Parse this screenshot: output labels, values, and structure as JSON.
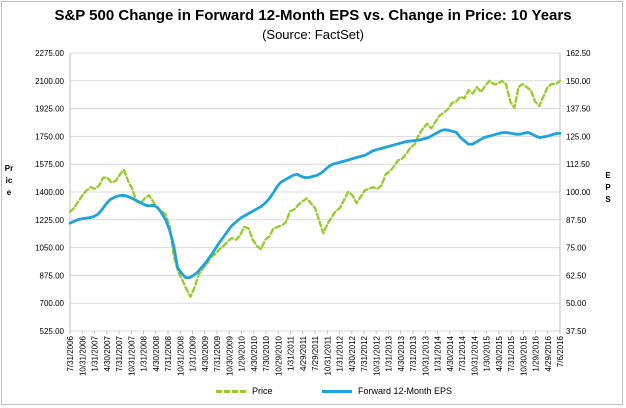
{
  "chart_data": {
    "type": "line",
    "title": "S&P 500 Change in Forward 12-Month EPS vs. Change in Price: 10 Years",
    "subtitle": "(Source: FactSet)",
    "ylabel_left": "Price",
    "ylabel_right": "EPS",
    "ylim_left": [
      525,
      2275
    ],
    "ylim_right": [
      37.5,
      162.5
    ],
    "yticks_left": [
      "2275.00",
      "2100.00",
      "1925.00",
      "1750.00",
      "1575.00",
      "1400.00",
      "1225.00",
      "1050.00",
      "875.00",
      "700.00",
      "525.00"
    ],
    "yticks_right": [
      "162.50",
      "150.00",
      "137.50",
      "125.00",
      "112.50",
      "100.00",
      "87.50",
      "75.00",
      "62.50",
      "50.00",
      "37.50"
    ],
    "x_tick_labels": [
      "7/31/2006",
      "10/31/2006",
      "1/31/2007",
      "4/30/2007",
      "7/31/2007",
      "10/31/2007",
      "1/31/2008",
      "4/30/2008",
      "7/31/2008",
      "10/31/2008",
      "1/31/2009",
      "4/30/2009",
      "7/31/2009",
      "10/30/2009",
      "1/29/2010",
      "4/30/2010",
      "7/30/2010",
      "10/29/2010",
      "1/31/2011",
      "4/29/2011",
      "7/29/2011",
      "10/31/2011",
      "1/31/2012",
      "4/30/2012",
      "7/31/2012",
      "10/31/2012",
      "1/31/2013",
      "4/30/2013",
      "7/31/2013",
      "10/31/2013",
      "1/31/2014",
      "4/30/2014",
      "7/31/2014",
      "10/31/2014",
      "1/30/2015",
      "4/30/2015",
      "7/31/2015",
      "10/30/2015",
      "1/29/2016",
      "4/29/2016",
      "7/6/2016"
    ],
    "grid": true,
    "legend_position": "bottom",
    "series": [
      {
        "name": "Price",
        "axis": "left",
        "color": "#99cc33",
        "style": "dashed",
        "values": [
          1276,
          1300,
          1340,
          1380,
          1410,
          1430,
          1420,
          1440,
          1490,
          1490,
          1460,
          1470,
          1510,
          1540,
          1470,
          1420,
          1340,
          1330,
          1360,
          1380,
          1340,
          1300,
          1280,
          1260,
          1180,
          1000,
          900,
          850,
          790,
          740,
          800,
          880,
          920,
          950,
          990,
          1010,
          1040,
          1060,
          1090,
          1110,
          1100,
          1130,
          1180,
          1170,
          1100,
          1060,
          1040,
          1100,
          1120,
          1170,
          1180,
          1190,
          1210,
          1280,
          1290,
          1320,
          1340,
          1360,
          1330,
          1300,
          1220,
          1140,
          1200,
          1240,
          1280,
          1300,
          1350,
          1400,
          1380,
          1330,
          1370,
          1410,
          1420,
          1430,
          1420,
          1440,
          1510,
          1530,
          1560,
          1600,
          1610,
          1640,
          1680,
          1700,
          1760,
          1800,
          1830,
          1800,
          1840,
          1880,
          1900,
          1920,
          1960,
          1970,
          2000,
          1990,
          2040,
          2020,
          2060,
          2030,
          2070,
          2100,
          2080,
          2080,
          2100,
          2080,
          1970,
          1930,
          2060,
          2080,
          2060,
          2040,
          1970,
          1940,
          2000,
          2060,
          2080,
          2080,
          2100
        ]
      },
      {
        "name": "Forward 12-Month EPS",
        "axis": "right",
        "color": "#1fa3d9",
        "style": "solid",
        "values": [
          86.0,
          86.8,
          87.6,
          88.0,
          88.2,
          88.5,
          89.0,
          90.0,
          92.0,
          94.5,
          96.5,
          97.5,
          98.2,
          98.5,
          98.3,
          97.6,
          96.8,
          95.9,
          94.9,
          94.0,
          93.8,
          94.0,
          93.0,
          90.5,
          87.5,
          83.0,
          76.0,
          66.0,
          63.5,
          61.5,
          61.5,
          62.5,
          64.0,
          66.0,
          68.0,
          70.5,
          73.0,
          76.0,
          78.5,
          81.0,
          83.5,
          85.5,
          87.0,
          88.5,
          89.5,
          90.5,
          91.5,
          92.5,
          93.5,
          95.0,
          97.0,
          99.5,
          102.5,
          104.5,
          105.5,
          106.5,
          107.5,
          108.0,
          107.0,
          106.5,
          106.5,
          107.0,
          107.5,
          108.5,
          110.0,
          111.5,
          112.5,
          113.0,
          113.5,
          114.0,
          114.5,
          115.0,
          115.5,
          116.0,
          116.5,
          117.5,
          118.5,
          119.0,
          119.5,
          120.0,
          120.5,
          121.0,
          121.5,
          122.0,
          122.5,
          122.8,
          123.0,
          123.2,
          123.5,
          124.0,
          124.5,
          125.5,
          126.5,
          127.5,
          128.0,
          127.8,
          127.3,
          126.8,
          124.5,
          123.0,
          121.5,
          121.5,
          122.5,
          123.5,
          124.5,
          125.0,
          125.5,
          126.0,
          126.5,
          126.8,
          126.6,
          126.3,
          126.0,
          126.0,
          126.5,
          126.8,
          126.0,
          125.0,
          124.5,
          124.8,
          125.2,
          125.7,
          126.3,
          126.4
        ]
      }
    ]
  }
}
